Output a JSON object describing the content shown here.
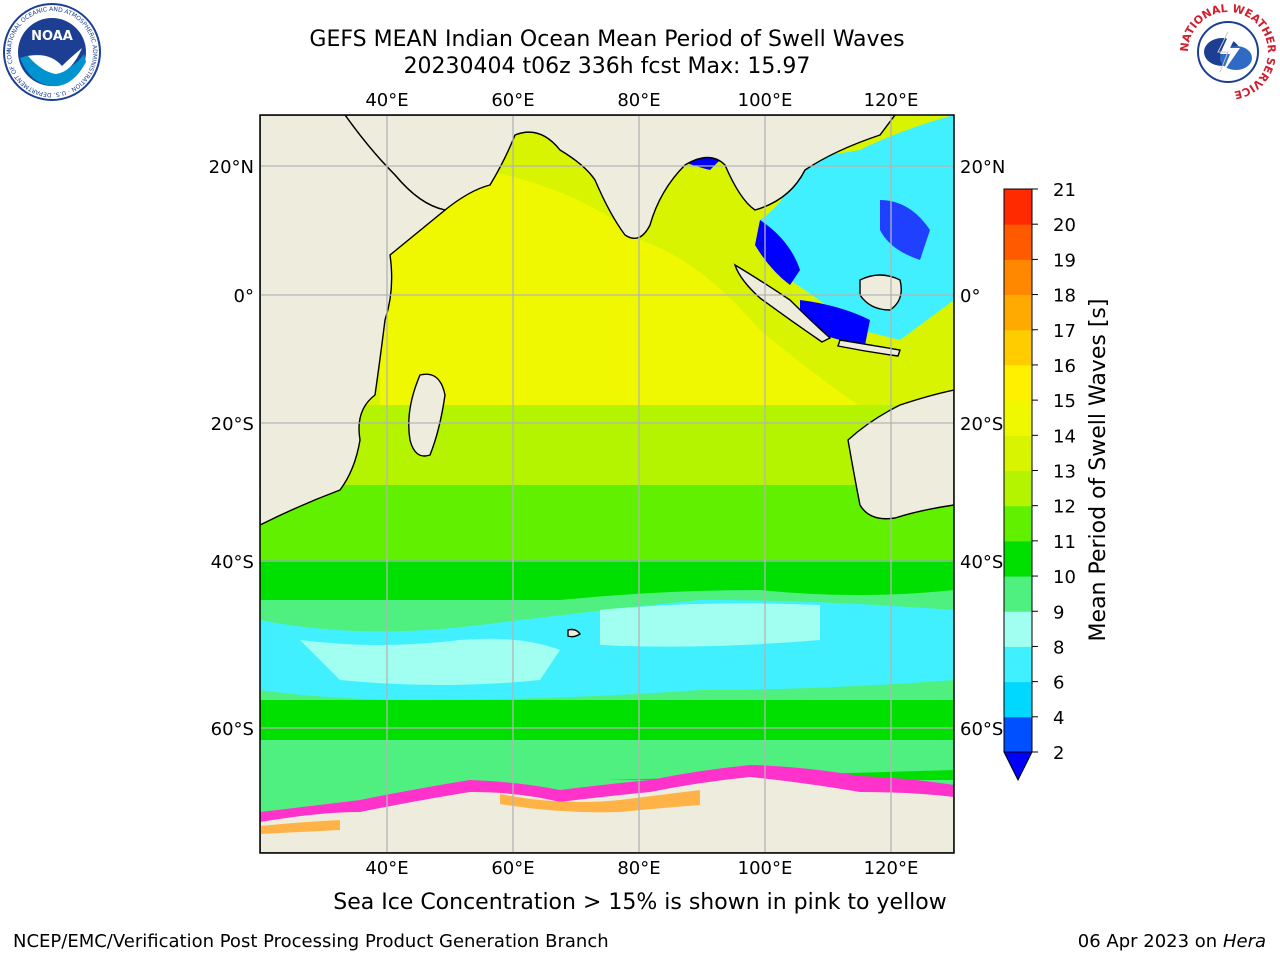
{
  "header": {
    "title_line1": "GEFS MEAN Indian Ocean Mean Period of Swell Waves",
    "title_line2": "20230404 t06z 336h fcst   Max: 15.97"
  },
  "map": {
    "region": "Indian Ocean",
    "lon_labels": [
      "40°E",
      "60°E",
      "80°E",
      "100°E",
      "120°E"
    ],
    "lat_labels": [
      "20°N",
      "0°",
      "20°S",
      "40°S",
      "60°S"
    ],
    "colors": {
      "land": "#eeecdc",
      "ice_edge": "#ff33cc",
      "ice_inner": "#ffb347",
      "grid": "#b4b4b4"
    }
  },
  "colorbar": {
    "label": "Mean Period of Swell Waves [s]",
    "ticks": [
      "2",
      "4",
      "6",
      "8",
      "9",
      "10",
      "11",
      "12",
      "13",
      "14",
      "15",
      "16",
      "17",
      "18",
      "19",
      "20",
      "21"
    ],
    "colors": [
      "#0050ff",
      "#00d8ff",
      "#40f0ff",
      "#a0fff0",
      "#50f080",
      "#00e000",
      "#60f000",
      "#b4f400",
      "#d8f400",
      "#f0f800",
      "#fff000",
      "#ffcc00",
      "#ffaa00",
      "#ff8800",
      "#ff5a00",
      "#ff2a00"
    ],
    "under_color": "#0000ff"
  },
  "caption": "Sea Ice Concentration > 15% is shown in pink to yellow",
  "footer": {
    "left": "NCEP/EMC/Verification Post Processing Product Generation Branch",
    "right_date": "06 Apr 2023 on ",
    "right_host": "Hera"
  },
  "logos": {
    "noaa_text": "NOAA",
    "noaa_ring": "NATIONAL OCEANIC AND ATMOSPHERIC ADMINISTRATION · U.S. DEPARTMENT OF COMMERCE",
    "nws_ring": "NATIONAL WEATHER SERVICE"
  }
}
